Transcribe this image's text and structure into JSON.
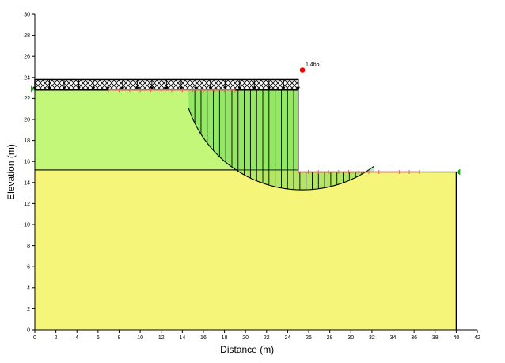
{
  "chart_data": {
    "type": "slope-stability cross-section",
    "xlabel": "Distance (m)",
    "ylabel": "Elevation (m)",
    "xlim": [
      0,
      42
    ],
    "ylim": [
      0,
      30
    ],
    "x_ticks": [
      0,
      2,
      4,
      6,
      8,
      10,
      12,
      14,
      16,
      18,
      20,
      22,
      24,
      26,
      28,
      30,
      32,
      34,
      36,
      38,
      40,
      42
    ],
    "y_ticks": [
      0,
      2,
      4,
      6,
      8,
      10,
      12,
      14,
      16,
      18,
      20,
      22,
      24,
      26,
      28,
      30
    ],
    "materials": [
      {
        "polygon": [
          [
            0,
            0
          ],
          [
            40,
            0
          ],
          [
            40,
            15
          ],
          [
            25,
            15
          ],
          [
            25,
            15.2
          ],
          [
            0,
            15.2
          ]
        ],
        "color": "#f5f57a"
      },
      {
        "polygon": [
          [
            0,
            15.2
          ],
          [
            25,
            15.2
          ],
          [
            25,
            22.8
          ],
          [
            0,
            22.8
          ]
        ],
        "color": "#c2f77a"
      }
    ],
    "surcharge_load": {
      "x": [
        0,
        25
      ],
      "y_bottom": 22.8,
      "y_top": 23.8
    },
    "crest_elevation": 22.8,
    "toe_elevation": 15,
    "slope_face_x": 25,
    "slip_surface": {
      "entry_x": 14.6,
      "exit_x": 32.2,
      "lowest_elevation": 13.3,
      "center": [
        25.4,
        24.7
      ]
    },
    "critical_center": {
      "x": 25.4,
      "y": 24.7,
      "color": "#ff0000"
    },
    "factor_of_safety": "1.465",
    "entry_range": {
      "x": [
        7,
        19
      ],
      "y": 22.8,
      "color": "#e06060"
    },
    "exit_range": {
      "x": [
        25,
        36.5
      ],
      "y": 15,
      "color": "#e06060"
    },
    "piezometric_markers": [
      {
        "x": 0,
        "y": 22.9,
        "color": "#1a9e1a"
      },
      {
        "x": 40,
        "y": 15,
        "color": "#1a9e1a"
      }
    ]
  }
}
